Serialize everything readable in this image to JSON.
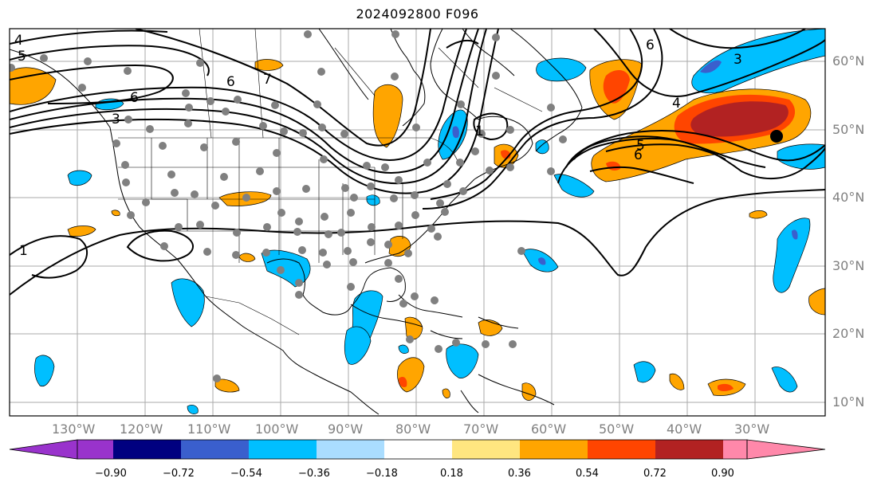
{
  "title": "2024092800 F096",
  "lon_labels": [
    "130°W",
    "120°W",
    "110°W",
    "100°W",
    "90°W",
    "80°W",
    "70°W",
    "60°W",
    "50°W",
    "40°W",
    "30°W"
  ],
  "lat_labels": [
    "60°N",
    "50°N",
    "40°N",
    "30°N",
    "20°N",
    "10°N"
  ],
  "contour_labels": [
    "4",
    "5",
    "6",
    "6",
    "3",
    "7",
    "6",
    "4",
    "3",
    "5",
    "6",
    "1",
    "1"
  ],
  "colorbar": {
    "ticks": [
      "−0.90",
      "−0.72",
      "−0.54",
      "−0.36",
      "−0.18",
      "0.18",
      "0.36",
      "0.54",
      "0.72",
      "0.90"
    ],
    "colors": [
      "#9933cc",
      "#000080",
      "#3a5fcd",
      "#00bfff",
      "#aaddff",
      "#ffffff",
      "#ffe680",
      "#ffa500",
      "#ff4500",
      "#b22222",
      "#ff88aa"
    ]
  }
}
